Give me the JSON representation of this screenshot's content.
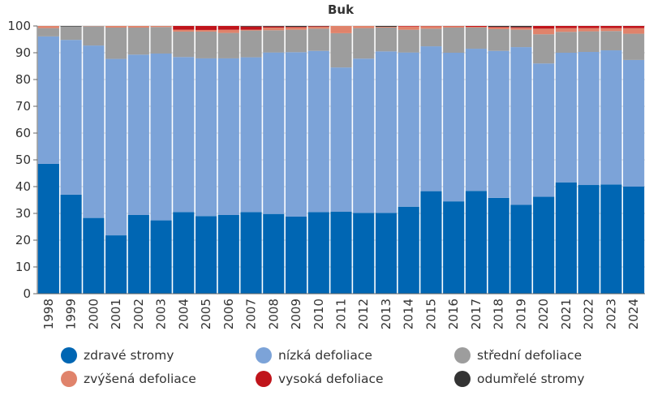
{
  "chart_data": {
    "type": "bar",
    "stacked": true,
    "title": "Buk",
    "xlabel": "",
    "ylabel": "",
    "ylim": [
      0,
      100
    ],
    "yticks": [
      0,
      10,
      20,
      30,
      40,
      50,
      60,
      70,
      80,
      90,
      100
    ],
    "grid": true,
    "legend_position": "bottom",
    "categories": [
      "1998",
      "1999",
      "2000",
      "2001",
      "2002",
      "2003",
      "2004",
      "2005",
      "2006",
      "2007",
      "2008",
      "2009",
      "2010",
      "2011",
      "2012",
      "2013",
      "2014",
      "2015",
      "2016",
      "2017",
      "2018",
      "2019",
      "2020",
      "2021",
      "2022",
      "2023",
      "2024"
    ],
    "series": [
      {
        "name": "zdravé stromy",
        "color": "#0066b3",
        "values": [
          48.5,
          37.0,
          28.3,
          21.8,
          29.4,
          27.4,
          30.5,
          29.0,
          29.4,
          30.5,
          29.8,
          28.8,
          30.5,
          30.6,
          30.2,
          30.2,
          32.5,
          38.3,
          34.5,
          38.4,
          35.8,
          33.2,
          36.2,
          41.6,
          40.6,
          40.8,
          40.0
        ]
      },
      {
        "name": "nízká defoliace",
        "color": "#7ca3d8",
        "values": [
          47.6,
          57.8,
          64.4,
          65.9,
          59.9,
          62.3,
          57.9,
          58.9,
          58.5,
          57.8,
          60.3,
          61.4,
          60.2,
          53.9,
          57.6,
          60.3,
          57.6,
          54.1,
          55.5,
          53.1,
          54.9,
          58.9,
          49.8,
          48.4,
          49.7,
          50.1,
          47.3
        ]
      },
      {
        "name": "střední defoliace",
        "color": "#9d9d9d",
        "values": [
          3.1,
          5.0,
          7.2,
          11.7,
          10.1,
          9.9,
          9.5,
          10.0,
          9.5,
          10.0,
          8.3,
          8.4,
          8.3,
          12.8,
          11.4,
          8.9,
          8.5,
          6.6,
          9.4,
          7.9,
          8.1,
          6.5,
          10.9,
          7.8,
          7.7,
          7.2,
          9.8
        ]
      },
      {
        "name": "zvýšená defoliace",
        "color": "#e0836b",
        "values": [
          0.8,
          0.0,
          0.1,
          0.6,
          0.6,
          0.4,
          0.7,
          0.6,
          1.2,
          0.3,
          1.0,
          0.9,
          0.7,
          2.7,
          0.8,
          0.3,
          1.2,
          0.9,
          0.5,
          0.3,
          0.7,
          0.7,
          2.1,
          1.4,
          1.2,
          1.1,
          2.1
        ]
      },
      {
        "name": "vysoká defoliace",
        "color": "#c0141b",
        "values": [
          0,
          0,
          0,
          0,
          0,
          0,
          1.4,
          1.5,
          1.4,
          1.2,
          0.4,
          0.2,
          0.2,
          0,
          0,
          0,
          0.2,
          0.1,
          0.1,
          0.3,
          0.2,
          0.3,
          1.0,
          0.8,
          0.8,
          0.8,
          0.8
        ]
      },
      {
        "name": "odumřelé stromy",
        "color": "#333333",
        "values": [
          0,
          0.2,
          0,
          0,
          0,
          0,
          0,
          0,
          0,
          0.2,
          0.2,
          0.3,
          0.1,
          0,
          0,
          0.3,
          0,
          0,
          0,
          0,
          0.3,
          0.4,
          0,
          0,
          0,
          0,
          0
        ]
      }
    ]
  }
}
